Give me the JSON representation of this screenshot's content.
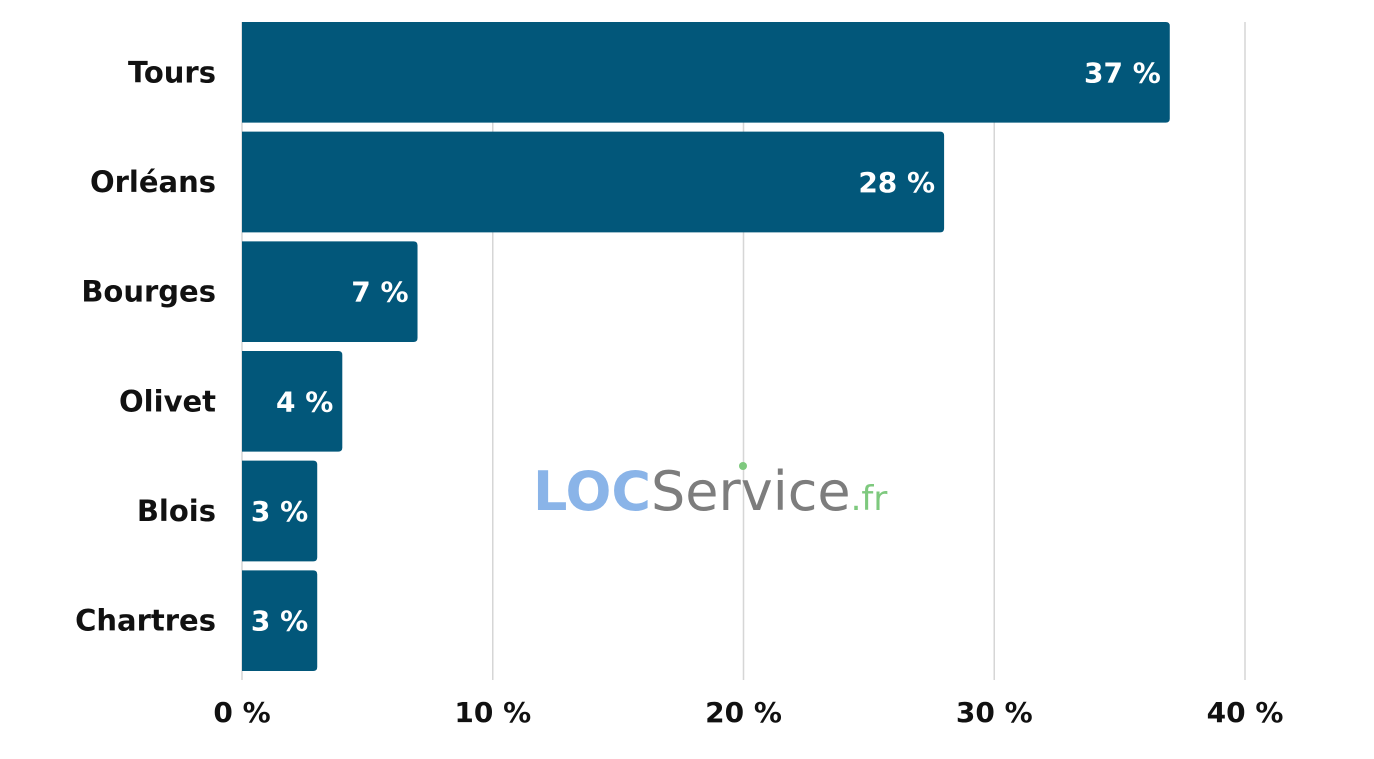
{
  "chart_data": {
    "type": "bar",
    "orientation": "horizontal",
    "categories": [
      "Tours",
      "Orléans",
      "Bourges",
      "Olivet",
      "Blois",
      "Chartres"
    ],
    "values": [
      37,
      28,
      7,
      4,
      3,
      3
    ],
    "value_labels": [
      "37 %",
      "28 %",
      "7 %",
      "4 %",
      "3 %",
      "3 %"
    ],
    "x_ticks": [
      0,
      10,
      20,
      30,
      40
    ],
    "x_tick_labels": [
      "0 %",
      "10 %",
      "20 %",
      "30 %",
      "40 %"
    ],
    "xlim": [
      0,
      40
    ],
    "grid": true,
    "bar_color": "#02577a",
    "title": "",
    "xlabel": "",
    "ylabel": ""
  },
  "watermark": {
    "part1": "LOC",
    "part2": "Service",
    "part3": ".fr"
  }
}
